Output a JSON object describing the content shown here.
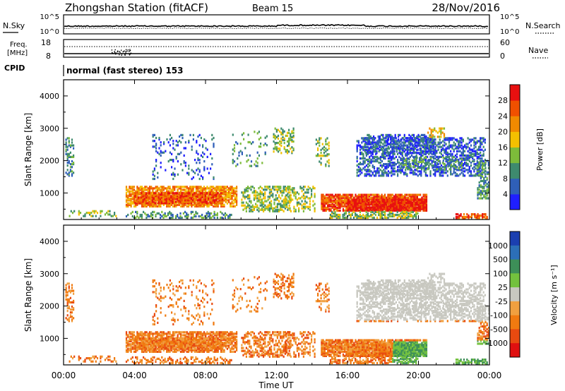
{
  "header": {
    "station": "Zhongshan Station (fitACF)",
    "beam": "Beam 15",
    "date": "28/Nov/2016"
  },
  "noise_panel": {
    "left_label": "N.Sky",
    "right_label": "N.Search",
    "ticks_left": [
      "10^5",
      "10^0"
    ],
    "ticks_right": [
      "10^5",
      "10^0"
    ]
  },
  "freq_panel": {
    "left_label_1": "Freq.",
    "left_label_2": "[MHz]",
    "right_label": "Nave",
    "ticks_left": [
      "18",
      "8"
    ],
    "ticks_right": [
      "60",
      "0"
    ]
  },
  "cpid_panel": {
    "label": "CPID",
    "mode": "normal (fast stereo) 153"
  },
  "chart_data": [
    {
      "type": "heatmap",
      "parameter": "power",
      "ylabel": "Slant Range [km]",
      "ylim": [
        180,
        4500
      ],
      "yticks": [
        "1000",
        "2000",
        "3000",
        "4000"
      ],
      "xlim_hours": [
        0,
        24
      ],
      "colorbar": {
        "label": "Power [dB]",
        "ticks": [
          "4",
          "8",
          "12",
          "16",
          "20",
          "24",
          "28"
        ],
        "colors": [
          "#1f1fff",
          "#2f5fb8",
          "#3e8a6e",
          "#7dbb3a",
          "#f3c000",
          "#f08a00",
          "#f05000",
          "#e81010"
        ]
      }
    },
    {
      "type": "heatmap",
      "parameter": "velocity",
      "ylabel": "Slant Range [km]",
      "ylim": [
        180,
        4500
      ],
      "yticks": [
        "1000",
        "2000",
        "3000",
        "4000"
      ],
      "xlim_hours": [
        0,
        24
      ],
      "colorbar": {
        "label": "Velocity [m s⁻¹]",
        "ticks": [
          "1000",
          "500",
          "100",
          "25",
          "-25",
          "-100",
          "-500",
          "-1000"
        ],
        "colors": [
          "#1b3fb0",
          "#2c6fb7",
          "#3d8f58",
          "#73c23e",
          "#c8c8c0",
          "#f0a040",
          "#f07a10",
          "#e84a10",
          "#e01010"
        ]
      }
    }
  ],
  "xaxis": {
    "label": "Time UT",
    "ticks": [
      "00:00",
      "04:00",
      "08:00",
      "12:00",
      "16:00",
      "20:00",
      "00:00"
    ]
  }
}
